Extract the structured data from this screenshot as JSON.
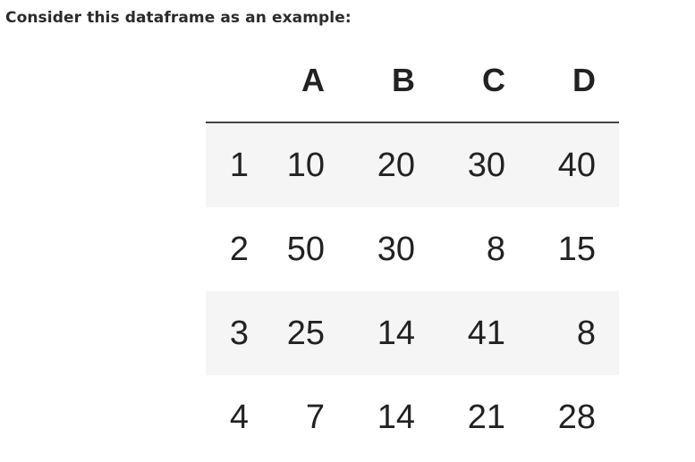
{
  "intro_text": "Consider this dataframe as an example:",
  "dataframe": {
    "columns": [
      "A",
      "B",
      "C",
      "D"
    ],
    "rows": [
      {
        "index": "1",
        "values": [
          "10",
          "20",
          "30",
          "40"
        ]
      },
      {
        "index": "2",
        "values": [
          "50",
          "30",
          "8",
          "15"
        ]
      },
      {
        "index": "3",
        "values": [
          "25",
          "14",
          "41",
          "8"
        ]
      },
      {
        "index": "4",
        "values": [
          "7",
          "14",
          "21",
          "28"
        ]
      }
    ]
  },
  "colors": {
    "stripe": "#f5f5f5",
    "text": "#222222",
    "header_rule": "#444444"
  }
}
